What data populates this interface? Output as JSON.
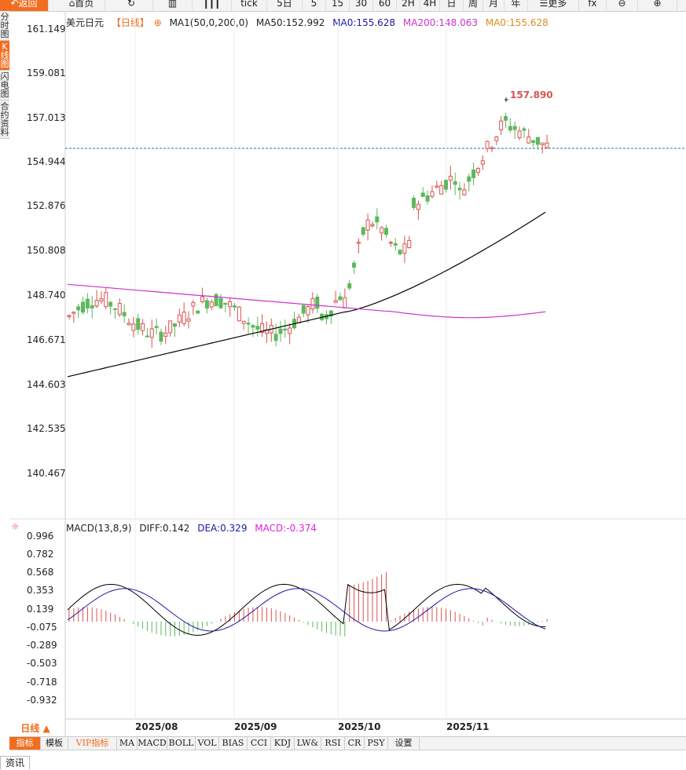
{
  "toolbar": {
    "back_label": "返回",
    "home_label": "首页",
    "tick_label": "tick",
    "periods": [
      "5日",
      "5",
      "15",
      "30",
      "60",
      "2H",
      "4H",
      "日",
      "周",
      "月",
      "年"
    ],
    "more_label": "更多"
  },
  "side_tabs": [
    "分时图",
    "K线图",
    "闪电图",
    "合约资料"
  ],
  "chart_header": {
    "symbol": "美元日元",
    "period": "【日线】",
    "ma_label": "MA1(50,0,200,0)",
    "ma50": "MA50:152.992",
    "ma0_a": "MA0:155.628",
    "ma200": "MA200:148.063",
    "ma0_b": "MA0:155.628"
  },
  "price_axis": [
    "161.149",
    "159.081",
    "157.013",
    "154.944",
    "152.876",
    "150.808",
    "148.740",
    "146.671",
    "144.603",
    "142.535",
    "140.467"
  ],
  "high_marker": "157.890",
  "macd_header": {
    "name": "MACD(13,8,9)",
    "diff": "DIFF:0.142",
    "dea": "DEA:0.329",
    "macd": "MACD:-0.374"
  },
  "macd_axis": [
    "0.996",
    "0.782",
    "0.568",
    "0.353",
    "0.139",
    "-0.075",
    "-0.289",
    "-0.503",
    "-0.718",
    "-0.932"
  ],
  "dates": [
    "2025/08",
    "2025/09",
    "2025/10",
    "2025/11"
  ],
  "period_button": "日线 ▲",
  "indicator_tabs": [
    "指标",
    "模板",
    "VIP指标",
    "MA",
    "MACD",
    "BOLL",
    "VOL",
    "BIAS",
    "CCI",
    "KDJ",
    "LW&",
    "RSI",
    "CR",
    "PSY",
    "设置"
  ],
  "info_tab": "资讯",
  "colors": {
    "up": "#d9534f",
    "down": "#5cb85c",
    "ma50": "#000000",
    "ma200": "#cc33cc",
    "dea": "#1a1aa6",
    "macd": "#e020e0",
    "accent": "#f26d1f"
  }
}
